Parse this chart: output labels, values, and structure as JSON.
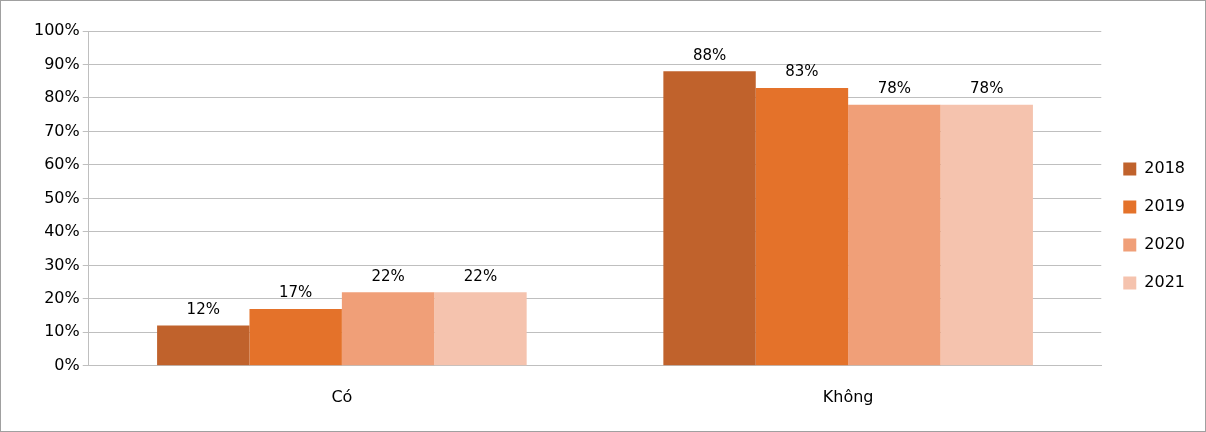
{
  "chart_data": {
    "type": "bar",
    "categories": [
      "Có",
      "Không"
    ],
    "series": [
      {
        "name": "2018",
        "color": "#c0622c",
        "values": [
          12,
          88
        ],
        "value_labels": [
          "12%",
          "88%"
        ]
      },
      {
        "name": "2019",
        "color": "#e4722a",
        "values": [
          17,
          83
        ],
        "value_labels": [
          "17%",
          "83%"
        ]
      },
      {
        "name": "2020",
        "color": "#f09f78",
        "values": [
          22,
          78
        ],
        "value_labels": [
          "22%",
          "78%"
        ]
      },
      {
        "name": "2021",
        "color": "#f5c3ae",
        "values": [
          22,
          78
        ],
        "value_labels": [
          "22%",
          "78%"
        ]
      }
    ],
    "ylim": [
      0,
      100
    ],
    "yticks": [
      {
        "value": 0,
        "label": "0%"
      },
      {
        "value": 10,
        "label": "10%"
      },
      {
        "value": 20,
        "label": "20%"
      },
      {
        "value": 30,
        "label": "30%"
      },
      {
        "value": 40,
        "label": "40%"
      },
      {
        "value": 50,
        "label": "50%"
      },
      {
        "value": 60,
        "label": "60%"
      },
      {
        "value": 70,
        "label": "70%"
      },
      {
        "value": 80,
        "label": "80%"
      },
      {
        "value": 90,
        "label": "90%"
      },
      {
        "value": 100,
        "label": "100%"
      }
    ],
    "grid": "y",
    "legend": "right"
  }
}
